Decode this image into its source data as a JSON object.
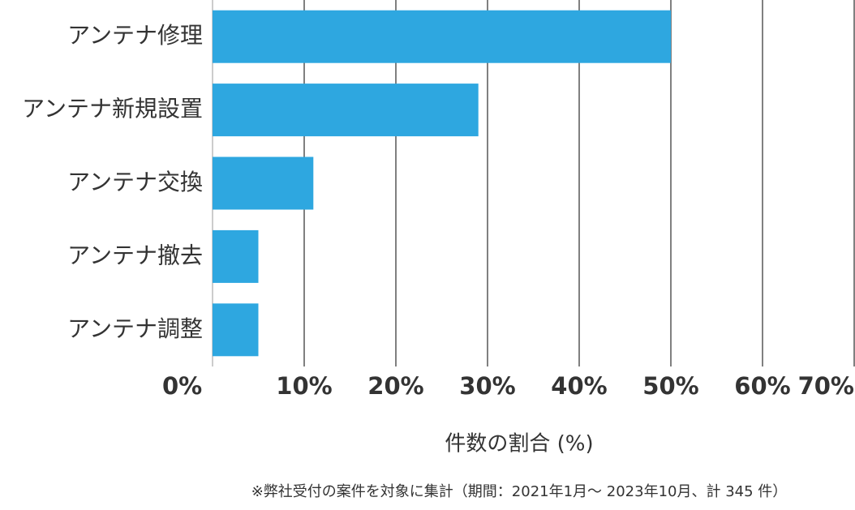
{
  "chart_data": {
    "type": "hbar",
    "categories": [
      "アンテナ修理",
      "アンテナ新規設置",
      "アンテナ交換",
      "アンテナ撤去",
      "アンテナ調整"
    ],
    "values": [
      50,
      29,
      11,
      5,
      5
    ],
    "color": "#2ea7e0",
    "xlim": [
      0,
      70
    ],
    "xticks": [
      {
        "value": 0,
        "label": "0%"
      },
      {
        "value": 10,
        "label": "10%"
      },
      {
        "value": 20,
        "label": "20%"
      },
      {
        "value": 30,
        "label": "30%"
      },
      {
        "value": 40,
        "label": "40%"
      },
      {
        "value": 50,
        "label": "50%"
      },
      {
        "value": 60,
        "label": "60%"
      },
      {
        "value": 70,
        "label": "70%"
      }
    ],
    "grid": true,
    "x_label": "件数の割合 (%)",
    "note": "※弊社受付の案件を対象に集計（期間：2021年1月～ 2023年10月、計 345 件）"
  }
}
